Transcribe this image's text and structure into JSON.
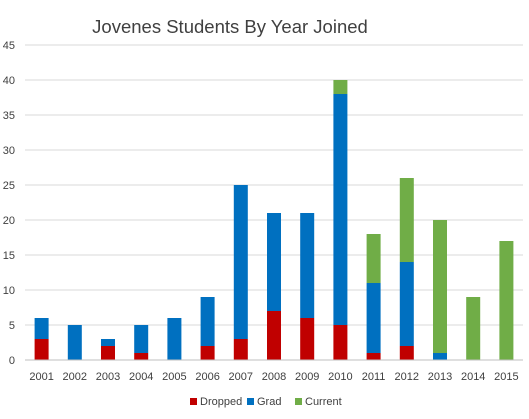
{
  "chart_data": {
    "type": "bar",
    "stacked": true,
    "title": "Jovenes Students By Year Joined",
    "xlabel": "",
    "ylabel": "",
    "categories": [
      "2001",
      "2002",
      "2003",
      "2004",
      "2005",
      "2006",
      "2007",
      "2008",
      "2009",
      "2010",
      "2011",
      "2012",
      "2013",
      "2014",
      "2015"
    ],
    "series": [
      {
        "name": "Dropped",
        "color": "#C00000",
        "values": [
          3,
          0,
          2,
          1,
          0,
          2,
          3,
          7,
          6,
          5,
          1,
          2,
          0,
          0,
          0
        ]
      },
      {
        "name": "Grad",
        "color": "#0070C0",
        "values": [
          3,
          5,
          1,
          4,
          6,
          7,
          22,
          14,
          15,
          33,
          10,
          12,
          1,
          0,
          0
        ]
      },
      {
        "name": "Current",
        "color": "#70AD47",
        "values": [
          0,
          0,
          0,
          0,
          0,
          0,
          0,
          0,
          0,
          2,
          7,
          12,
          19,
          9,
          17
        ]
      }
    ],
    "ylim": [
      0,
      45
    ],
    "yticks": [
      0,
      5,
      10,
      15,
      20,
      25,
      30,
      35,
      40,
      45
    ],
    "grid": true,
    "legend": "bottom"
  }
}
